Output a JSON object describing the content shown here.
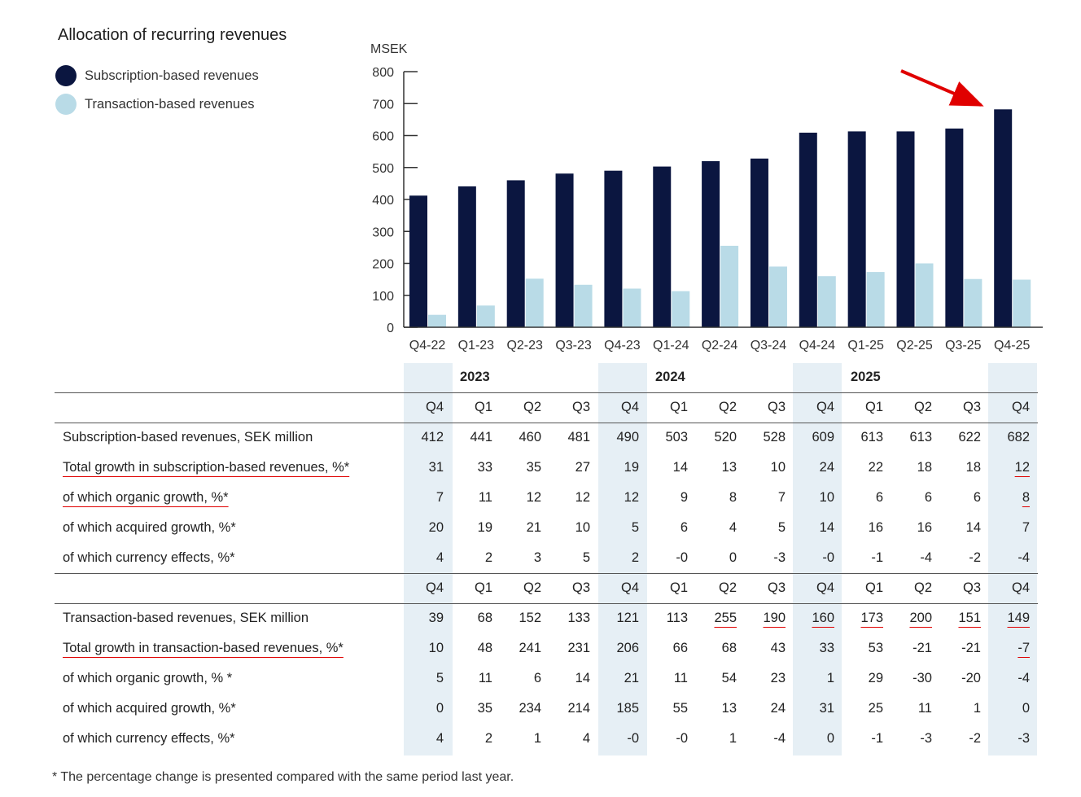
{
  "title": "Allocation of recurring revenues",
  "legend": [
    {
      "label": "Subscription-based revenues",
      "color": "#0b1640"
    },
    {
      "label": "Transaction-based revenues",
      "color": "#b9dbe7"
    }
  ],
  "chart_data": {
    "type": "bar",
    "ylabel": "MSEK",
    "ylim": [
      0,
      800
    ],
    "yticks": [
      "0",
      "100",
      "200",
      "300",
      "400",
      "500",
      "600",
      "700",
      "800"
    ],
    "categories": [
      "Q4-22",
      "Q1-23",
      "Q2-23",
      "Q3-23",
      "Q4-23",
      "Q1-24",
      "Q2-24",
      "Q3-24",
      "Q4-24",
      "Q1-25",
      "Q2-25",
      "Q3-25",
      "Q4-25"
    ],
    "series": [
      {
        "name": "Subscription-based revenues",
        "color": "#0b1640",
        "values": [
          412,
          441,
          460,
          481,
          490,
          503,
          520,
          528,
          609,
          613,
          613,
          622,
          682
        ]
      },
      {
        "name": "Transaction-based revenues",
        "color": "#b9dbe7",
        "values": [
          39,
          68,
          152,
          133,
          121,
          113,
          255,
          190,
          160,
          173,
          200,
          151,
          149
        ]
      }
    ],
    "annotation": "red arrow pointing at Q4-25 subscription bar"
  },
  "table": {
    "years": [
      "2023",
      "2024",
      "2025"
    ],
    "quarters": [
      "Q4",
      "Q1",
      "Q2",
      "Q3",
      "Q4",
      "Q1",
      "Q2",
      "Q3",
      "Q4",
      "Q1",
      "Q2",
      "Q3",
      "Q4"
    ],
    "subscription_rows": [
      {
        "label": "Subscription-based revenues, SEK million",
        "values": [
          "412",
          "441",
          "460",
          "481",
          "490",
          "503",
          "520",
          "528",
          "609",
          "613",
          "613",
          "622",
          "682"
        ]
      },
      {
        "label": "Total growth in subscription-based revenues, %*",
        "values": [
          "31",
          "33",
          "35",
          "27",
          "19",
          "14",
          "13",
          "10",
          "24",
          "22",
          "18",
          "18",
          "12"
        ]
      },
      {
        "label": "of which organic growth, %*",
        "values": [
          "7",
          "11",
          "12",
          "12",
          "12",
          "9",
          "8",
          "7",
          "10",
          "6",
          "6",
          "6",
          "8"
        ]
      },
      {
        "label": "of which acquired growth, %*",
        "values": [
          "20",
          "19",
          "21",
          "10",
          "5",
          "6",
          "4",
          "5",
          "14",
          "16",
          "16",
          "14",
          "7"
        ]
      },
      {
        "label": "of which currency effects, %*",
        "values": [
          "4",
          "2",
          "3",
          "5",
          "2",
          "-0",
          "0",
          "-3",
          "-0",
          "-1",
          "-4",
          "-2",
          "-4"
        ]
      }
    ],
    "transaction_rows": [
      {
        "label": "Transaction-based revenues, SEK million",
        "values": [
          "39",
          "68",
          "152",
          "133",
          "121",
          "113",
          "255",
          "190",
          "160",
          "173",
          "200",
          "151",
          "149"
        ]
      },
      {
        "label": "Total growth in transaction-based revenues, %*",
        "values": [
          "10",
          "48",
          "241",
          "231",
          "206",
          "66",
          "68",
          "43",
          "33",
          "53",
          "-21",
          "-21",
          "-7"
        ]
      },
      {
        "label": "of which organic growth, % *",
        "values": [
          "5",
          "11",
          "6",
          "14",
          "21",
          "11",
          "54",
          "23",
          "1",
          "29",
          "-30",
          "-20",
          "-4"
        ]
      },
      {
        "label": "of which acquired growth, %*",
        "values": [
          "0",
          "35",
          "234",
          "214",
          "185",
          "55",
          "13",
          "24",
          "31",
          "25",
          "11",
          "1",
          "0"
        ]
      },
      {
        "label": "of which currency effects, %*",
        "values": [
          "4",
          "2",
          "1",
          "4",
          "-0",
          "-0",
          "1",
          "-4",
          "0",
          "-1",
          "-3",
          "-2",
          "-3"
        ]
      }
    ]
  },
  "footnote": "* The percentage change is presented compared with the same period last year."
}
